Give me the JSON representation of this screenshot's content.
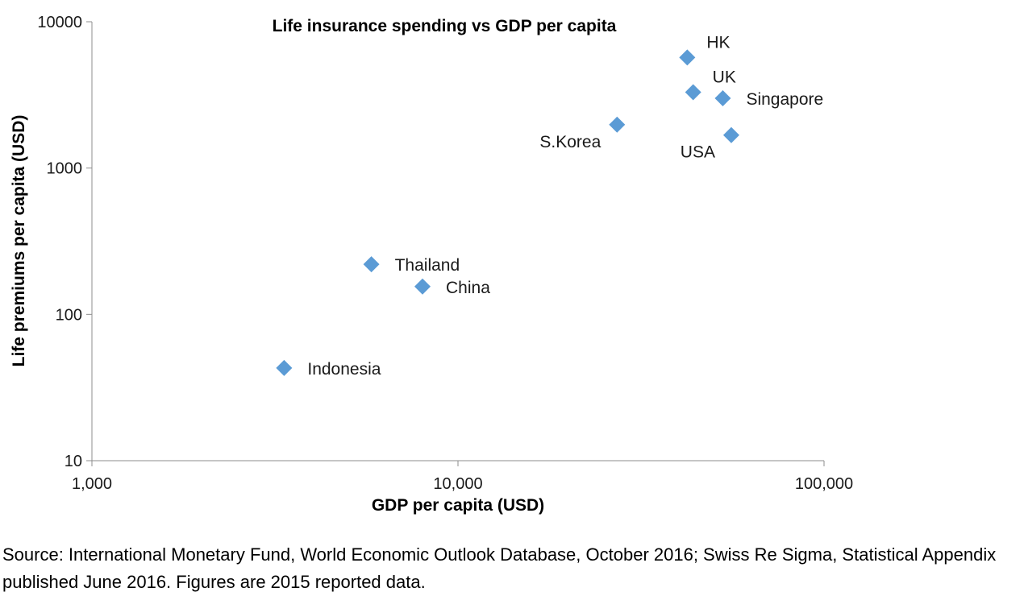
{
  "chart_data": {
    "type": "scatter",
    "title": "Life insurance spending vs GDP per capita",
    "xlabel": "GDP per capita (USD)",
    "ylabel": "Life premiums per capita (USD)",
    "x_scale": "log",
    "y_scale": "log",
    "xlim": [
      1000,
      100000
    ],
    "ylim": [
      10,
      10000
    ],
    "x_ticks": [
      {
        "value": 1000,
        "label": "1,000"
      },
      {
        "value": 10000,
        "label": "10,000"
      },
      {
        "value": 100000,
        "label": "100,000"
      }
    ],
    "y_ticks": [
      {
        "value": 10,
        "label": "10"
      },
      {
        "value": 100,
        "label": "100"
      },
      {
        "value": 1000,
        "label": "1000"
      },
      {
        "value": 10000,
        "label": "10000"
      }
    ],
    "grid": false,
    "legend": "none",
    "marker": "diamond",
    "marker_color": "#5B9BD5",
    "points": [
      {
        "label": "HK",
        "x": 42300,
        "y": 5700,
        "label_pos": "above-right"
      },
      {
        "label": "UK",
        "x": 43900,
        "y": 3300,
        "label_pos": "above-right"
      },
      {
        "label": "Singapore",
        "x": 52900,
        "y": 3000,
        "label_pos": "right"
      },
      {
        "label": "USA",
        "x": 55800,
        "y": 1680,
        "label_pos": "below-left"
      },
      {
        "label": "S.Korea",
        "x": 27200,
        "y": 1980,
        "label_pos": "below-left"
      },
      {
        "label": "Thailand",
        "x": 5800,
        "y": 220,
        "label_pos": "right"
      },
      {
        "label": "China",
        "x": 8000,
        "y": 155,
        "label_pos": "right"
      },
      {
        "label": "Indonesia",
        "x": 3350,
        "y": 43,
        "label_pos": "right"
      }
    ]
  },
  "source_text": "Source: International Monetary Fund, World Economic Outlook Database, October 2016; Swiss Re Sigma, Statistical Appendix published June 2016. Figures are 2015 reported data."
}
